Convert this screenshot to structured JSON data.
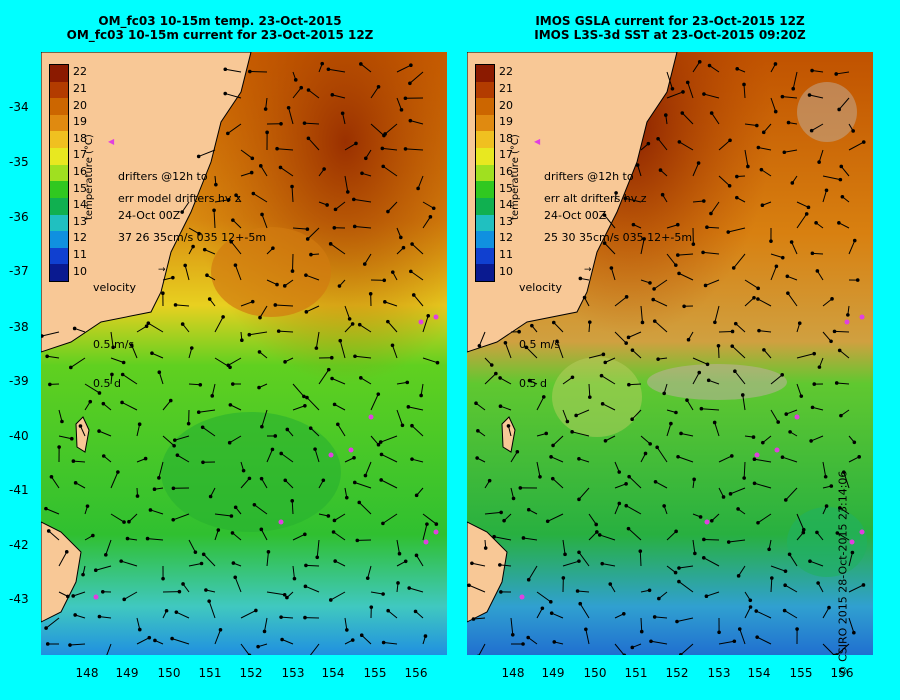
{
  "left": {
    "title_line1": "OM_fc03 10-15m temp. 23-Oct-2015",
    "title_line2": "OM_fc03 10-15m current for 23-Oct-2015 12Z",
    "drifters_line1": "drifters @12h to",
    "drifters_line2": "24-Oct 00Z",
    "err_line1": "err model drifters hv z",
    "err_line2": "37 26 35cm/s 035 12+-5m"
  },
  "right": {
    "title_line1": "IMOS GSLA current for 23-Oct-2015 12Z",
    "title_line2": "IMOS L3S-3d SST at 23-Oct-2015 09:20Z",
    "drifters_line1": "drifters @12h to",
    "drifters_line2": "24-Oct 00Z",
    "err_line1": "err alt drifters hv z",
    "err_line2": "25 30 35cm/s 035 12+-5m"
  },
  "colorbar": {
    "title": "temperature (°C)",
    "labels": [
      "22",
      "21",
      "20",
      "19",
      "18",
      "17",
      "16",
      "15",
      "14",
      "13",
      "12",
      "11",
      "10"
    ],
    "colors": [
      "#8b1a00",
      "#b33c00",
      "#cc6600",
      "#e08a10",
      "#f0c020",
      "#e8e820",
      "#a0e020",
      "#30c820",
      "#10b050",
      "#20c0c0",
      "#1090e0",
      "#1040d0",
      "#0a1a90"
    ]
  },
  "velocity": {
    "label": "velocity",
    "speed": "0.5 m/s",
    "duration": "0.5 d"
  },
  "yaxis_labels": [
    "-34",
    "-35",
    "-36",
    "-37",
    "-38",
    "-39",
    "-40",
    "-41",
    "-42",
    "-43"
  ],
  "xaxis_labels": [
    "148",
    "149",
    "150",
    "151",
    "152",
    "153",
    "154",
    "155",
    "156"
  ],
  "copyright": "© CSIRO 2015   28-Oct-2015 23:14:06",
  "colors": {
    "background": "#00ffff",
    "land": "#f8c896",
    "drifter": "#e040e0"
  }
}
